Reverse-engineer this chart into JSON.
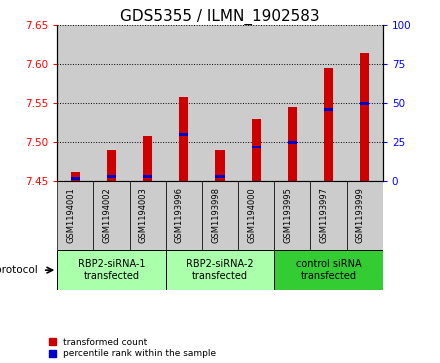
{
  "title": "GDS5355 / ILMN_1902583",
  "samples": [
    "GSM1194001",
    "GSM1194002",
    "GSM1194003",
    "GSM1193996",
    "GSM1193998",
    "GSM1194000",
    "GSM1193995",
    "GSM1193997",
    "GSM1193999"
  ],
  "transformed_counts": [
    7.462,
    7.49,
    7.508,
    7.558,
    7.49,
    7.53,
    7.545,
    7.595,
    7.615
  ],
  "percentile_ranks": [
    2,
    3,
    3,
    30,
    3,
    22,
    25,
    46,
    50
  ],
  "ylim_left": [
    7.45,
    7.65
  ],
  "ylim_right": [
    0,
    100
  ],
  "yticks_left": [
    7.45,
    7.5,
    7.55,
    7.6,
    7.65
  ],
  "yticks_right": [
    0,
    25,
    50,
    75,
    100
  ],
  "bar_color": "#cc0000",
  "percentile_color": "#0000cc",
  "bar_bottom": 7.45,
  "groups": [
    {
      "label": "RBP2-siRNA-1\ntransfected",
      "indices": [
        0,
        1,
        2
      ],
      "color": "#aaffaa"
    },
    {
      "label": "RBP2-siRNA-2\ntransfected",
      "indices": [
        3,
        4,
        5
      ],
      "color": "#aaffaa"
    },
    {
      "label": "control siRNA\ntransfected",
      "indices": [
        6,
        7,
        8
      ],
      "color": "#33cc33"
    }
  ],
  "protocol_label": "protocol",
  "legend_red": "transformed count",
  "legend_blue": "percentile rank within the sample",
  "title_fontsize": 11,
  "tick_fontsize": 7.5,
  "bar_width": 0.25,
  "sample_bg_color": "#cccccc"
}
